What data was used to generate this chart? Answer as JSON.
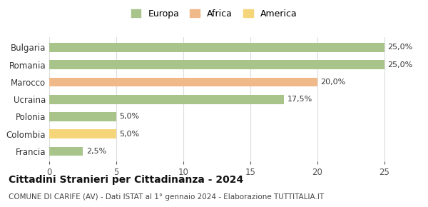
{
  "categories": [
    "Francia",
    "Colombia",
    "Polonia",
    "Ucraina",
    "Marocco",
    "Romania",
    "Bulgaria"
  ],
  "values": [
    2.5,
    5.0,
    5.0,
    17.5,
    20.0,
    25.0,
    25.0
  ],
  "labels": [
    "2,5%",
    "5,0%",
    "5,0%",
    "17,5%",
    "20,0%",
    "25,0%",
    "25,0%"
  ],
  "bar_colors": [
    "#a8c48a",
    "#f5d57a",
    "#a8c48a",
    "#a8c48a",
    "#f0b98a",
    "#a8c48a",
    "#a8c48a"
  ],
  "legend_items": [
    {
      "label": "Europa",
      "color": "#a8c48a"
    },
    {
      "label": "Africa",
      "color": "#f0b98a"
    },
    {
      "label": "America",
      "color": "#f5d57a"
    }
  ],
  "xlim": [
    0,
    26.5
  ],
  "xticks": [
    0,
    5,
    10,
    15,
    20,
    25
  ],
  "title": "Cittadini Stranieri per Cittadinanza - 2024",
  "subtitle": "COMUNE DI CARIFE (AV) - Dati ISTAT al 1° gennaio 2024 - Elaborazione TUTTITALIA.IT",
  "title_fontsize": 10,
  "subtitle_fontsize": 7.5,
  "bar_height": 0.52,
  "background_color": "#ffffff",
  "grid_color": "#dddddd",
  "label_fontsize": 8,
  "ytick_fontsize": 8.5,
  "xtick_fontsize": 8.5,
  "legend_fontsize": 9
}
